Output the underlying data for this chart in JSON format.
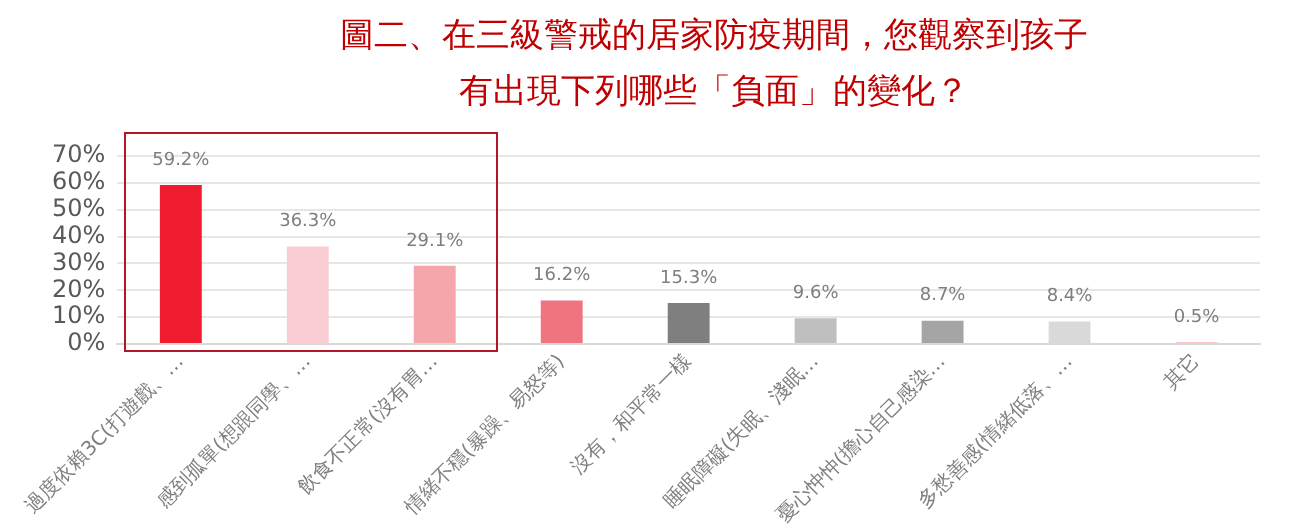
{
  "chart_data": {
    "type": "bar",
    "title": "圖二、在三級警戒的居家防疫期間，您觀察到孩子有出現下列哪些「負面」的變化？",
    "categories": [
      "過度依賴3C(打遊戲、…",
      "感到孤單(想跟同學、…",
      "飲食不正常(沒有胃…",
      "情緒不穩(暴躁、易怒等)",
      "沒有，和平常一樣",
      "睡眠障礙(失眠、淺眠…",
      "憂心忡忡(擔心自己感染…",
      "多愁善感(情緒低落、…",
      "其它"
    ],
    "values": [
      59.2,
      36.3,
      29.1,
      16.2,
      15.3,
      9.6,
      8.7,
      8.4,
      0.5
    ],
    "value_labels": [
      "59.2%",
      "36.3%",
      "29.1%",
      "16.2%",
      "15.3%",
      "9.6%",
      "8.7%",
      "8.4%",
      "0.5%"
    ],
    "colors": [
      "#ee1c2e",
      "#f9cdd3",
      "#f5a6ab",
      "#f07480",
      "#7f7f7f",
      "#bfbfbf",
      "#a5a5a5",
      "#d9d9d9",
      "#ee1c2e"
    ],
    "ylim": [
      0,
      70
    ],
    "yticks": [
      {
        "value": 0,
        "label": "0%"
      },
      {
        "value": 10,
        "label": "10%"
      },
      {
        "value": 20,
        "label": "20%"
      },
      {
        "value": 30,
        "label": "30%"
      },
      {
        "value": 40,
        "label": "40%"
      },
      {
        "value": 50,
        "label": "50%"
      },
      {
        "value": 60,
        "label": "60%"
      },
      {
        "value": 70,
        "label": "70%"
      }
    ],
    "grid": "y",
    "legend": false
  }
}
